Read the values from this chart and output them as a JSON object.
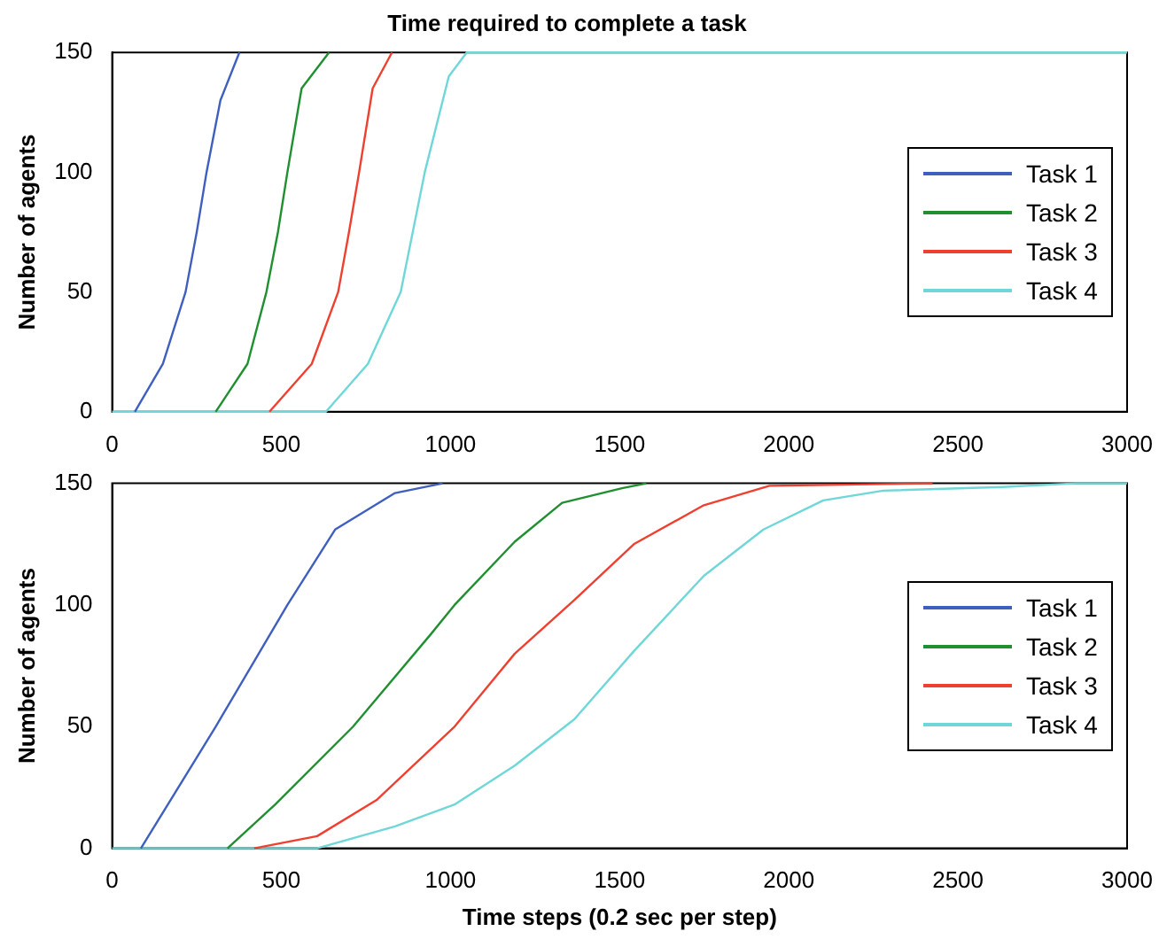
{
  "chart_data": [
    {
      "type": "line",
      "title": "Time required to complete a task",
      "ylabel": "Number of agents",
      "xlim": [
        0,
        3000
      ],
      "xticks": [
        0,
        500,
        1000,
        1500,
        2000,
        2500,
        3000
      ],
      "ylim": [
        0,
        150
      ],
      "yticks": [
        0,
        50,
        100,
        150
      ],
      "grid": false,
      "legend": "right",
      "series": [
        {
          "name": "Task 1",
          "color": "#3f5fbf",
          "x": [
            67,
            150,
            217,
            250,
            279,
            320,
            376
          ],
          "values": [
            0,
            20,
            50,
            75,
            100,
            130,
            150
          ]
        },
        {
          "name": "Task 2",
          "color": "#1f8f2f",
          "x": [
            306,
            400,
            456,
            490,
            518,
            560,
            641
          ],
          "values": [
            0,
            20,
            50,
            75,
            100,
            135,
            150
          ]
        },
        {
          "name": "Task 3",
          "color": "#ef3f2f",
          "x": [
            465,
            590,
            668,
            700,
            730,
            770,
            827
          ],
          "values": [
            0,
            20,
            50,
            75,
            100,
            135,
            150
          ]
        },
        {
          "name": "Task 4",
          "color": "#6fd7d7",
          "x": [
            0,
            632,
            756,
            853,
            924,
            995,
            1048,
            3000
          ],
          "values": [
            0,
            0,
            20,
            50,
            100,
            140,
            150,
            150
          ]
        }
      ]
    },
    {
      "type": "line",
      "xlabel": "Time steps (0.2 sec per step)",
      "ylabel": "Number of agents",
      "xlim": [
        0,
        3000
      ],
      "xticks": [
        0,
        500,
        1000,
        1500,
        2000,
        2500,
        3000
      ],
      "ylim": [
        0,
        150
      ],
      "yticks": [
        0,
        50,
        100,
        150
      ],
      "grid": false,
      "legend": "right",
      "series": [
        {
          "name": "Task 1",
          "color": "#3f5fbf",
          "x": [
            85,
            306,
            518,
            659,
            836,
            977
          ],
          "values": [
            0,
            50,
            100,
            131,
            146,
            150
          ]
        },
        {
          "name": "Task 2",
          "color": "#1f8f2f",
          "x": [
            341,
            482,
            712,
            942,
            1012,
            1190,
            1330,
            1507,
            1579
          ],
          "values": [
            0,
            18,
            50,
            88,
            100,
            126,
            142,
            148,
            150
          ]
        },
        {
          "name": "Task 3",
          "color": "#ef3f2f",
          "x": [
            420,
            606,
            783,
            1012,
            1190,
            1366,
            1542,
            1749,
            1943,
            2425
          ],
          "values": [
            0,
            5,
            20,
            50,
            80,
            102,
            125,
            141,
            149,
            150
          ]
        },
        {
          "name": "Task 4",
          "color": "#6fd7d7",
          "x": [
            0,
            606,
            836,
            1012,
            1190,
            1366,
            1542,
            1749,
            1925,
            2102,
            2279,
            2631,
            2849,
            3000
          ],
          "values": [
            0,
            0,
            9,
            18,
            34,
            53,
            81,
            112,
            131,
            143,
            147,
            148.5,
            150,
            150
          ]
        }
      ]
    }
  ]
}
